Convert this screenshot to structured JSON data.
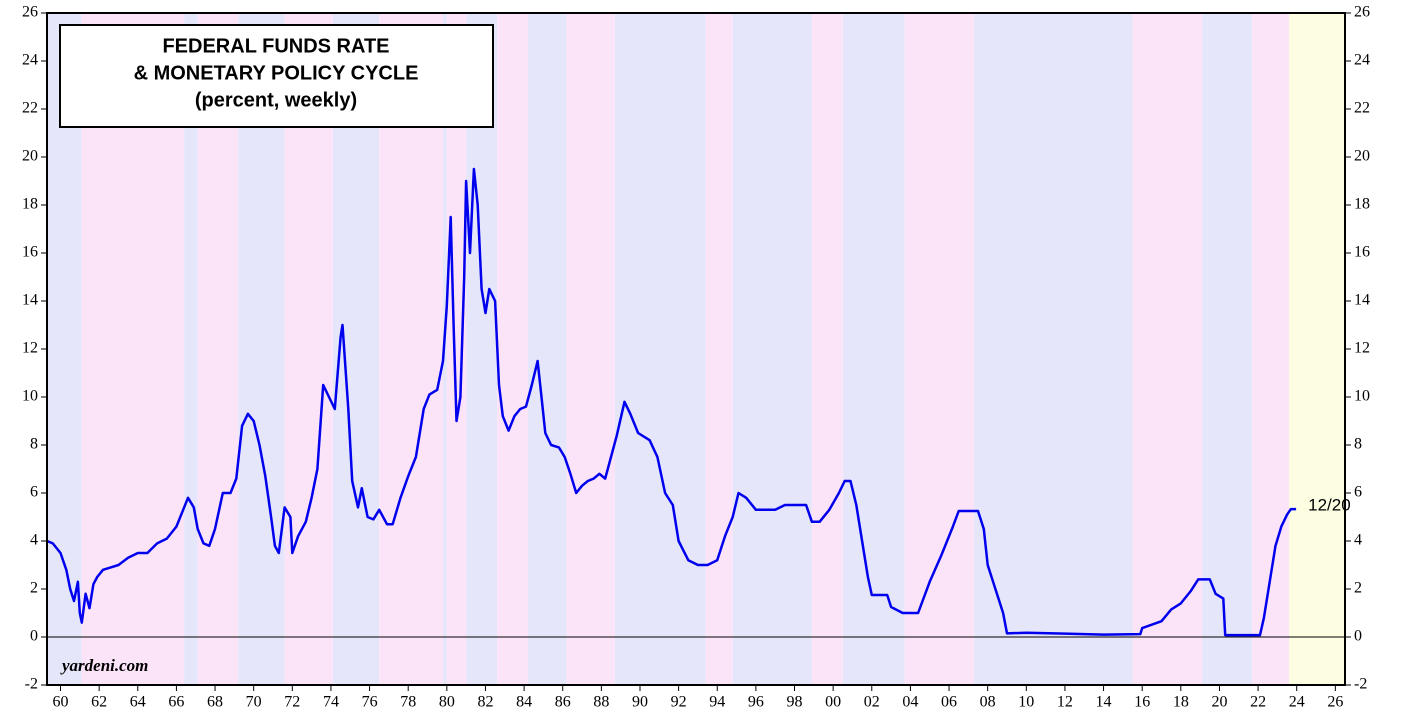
{
  "chart_data": {
    "type": "line",
    "title": [
      "FEDERAL FUNDS RATE",
      "& MONETARY POLICY CYCLE",
      "(percent, weekly)"
    ],
    "source": "yardeni.com",
    "end_label": "12/20",
    "color": "#0000ee",
    "xlim": [
      1959.3,
      2026.5
    ],
    "ylim": [
      -2,
      26
    ],
    "yticks": [
      -2,
      0,
      2,
      4,
      6,
      8,
      10,
      12,
      14,
      16,
      18,
      20,
      22,
      24,
      26
    ],
    "xticks": [
      {
        "value": 1960,
        "label": "60"
      },
      {
        "value": 1962,
        "label": "62"
      },
      {
        "value": 1964,
        "label": "64"
      },
      {
        "value": 1966,
        "label": "66"
      },
      {
        "value": 1968,
        "label": "68"
      },
      {
        "value": 1970,
        "label": "70"
      },
      {
        "value": 1972,
        "label": "72"
      },
      {
        "value": 1974,
        "label": "74"
      },
      {
        "value": 1976,
        "label": "76"
      },
      {
        "value": 1978,
        "label": "78"
      },
      {
        "value": 1980,
        "label": "80"
      },
      {
        "value": 1982,
        "label": "82"
      },
      {
        "value": 1984,
        "label": "84"
      },
      {
        "value": 1986,
        "label": "86"
      },
      {
        "value": 1988,
        "label": "88"
      },
      {
        "value": 1990,
        "label": "90"
      },
      {
        "value": 1992,
        "label": "92"
      },
      {
        "value": 1994,
        "label": "94"
      },
      {
        "value": 1996,
        "label": "96"
      },
      {
        "value": 1998,
        "label": "98"
      },
      {
        "value": 2000,
        "label": "00"
      },
      {
        "value": 2002,
        "label": "02"
      },
      {
        "value": 2004,
        "label": "04"
      },
      {
        "value": 2006,
        "label": "06"
      },
      {
        "value": 2008,
        "label": "08"
      },
      {
        "value": 2010,
        "label": "10"
      },
      {
        "value": 2012,
        "label": "12"
      },
      {
        "value": 2014,
        "label": "14"
      },
      {
        "value": 2016,
        "label": "16"
      },
      {
        "value": 2018,
        "label": "18"
      },
      {
        "value": 2020,
        "label": "20"
      },
      {
        "value": 2022,
        "label": "22"
      },
      {
        "value": 2024,
        "label": "24"
      },
      {
        "value": 2026,
        "label": "26"
      }
    ],
    "shaded_periods": [
      {
        "start": 1959.3,
        "end": 1961.1,
        "color": "#e6e6fa"
      },
      {
        "start": 1961.1,
        "end": 1966.4,
        "color": "#fce4f8"
      },
      {
        "start": 1966.4,
        "end": 1967.1,
        "color": "#e6e6fa"
      },
      {
        "start": 1967.1,
        "end": 1969.2,
        "color": "#fce4f8"
      },
      {
        "start": 1969.2,
        "end": 1971.6,
        "color": "#e6e6fa"
      },
      {
        "start": 1971.6,
        "end": 1974.1,
        "color": "#fce4f8"
      },
      {
        "start": 1974.1,
        "end": 1976.5,
        "color": "#e6e6fa"
      },
      {
        "start": 1976.5,
        "end": 1979.8,
        "color": "#fce4f8"
      },
      {
        "start": 1979.8,
        "end": 1980.0,
        "color": "#e6e6fa"
      },
      {
        "start": 1980.0,
        "end": 1981.0,
        "color": "#fce4f8"
      },
      {
        "start": 1981.0,
        "end": 1982.6,
        "color": "#e6e6fa"
      },
      {
        "start": 1982.6,
        "end": 1984.2,
        "color": "#fce4f8"
      },
      {
        "start": 1984.2,
        "end": 1986.2,
        "color": "#e6e6fa"
      },
      {
        "start": 1986.2,
        "end": 1988.7,
        "color": "#fce4f8"
      },
      {
        "start": 1988.7,
        "end": 1993.4,
        "color": "#e6e6fa"
      },
      {
        "start": 1993.4,
        "end": 1994.8,
        "color": "#fce4f8"
      },
      {
        "start": 1994.8,
        "end": 1998.9,
        "color": "#e6e6fa"
      },
      {
        "start": 1998.9,
        "end": 2000.5,
        "color": "#fce4f8"
      },
      {
        "start": 2000.5,
        "end": 2003.7,
        "color": "#e6e6fa"
      },
      {
        "start": 2003.7,
        "end": 2007.3,
        "color": "#fce4f8"
      },
      {
        "start": 2007.3,
        "end": 2015.5,
        "color": "#e6e6fa"
      },
      {
        "start": 2015.5,
        "end": 2019.1,
        "color": "#fce4f8"
      },
      {
        "start": 2019.1,
        "end": 2021.7,
        "color": "#e6e6fa"
      },
      {
        "start": 2021.7,
        "end": 2023.6,
        "color": "#fce4f8"
      },
      {
        "start": 2023.6,
        "end": 2026.5,
        "color": "#fdfde2"
      }
    ],
    "x": [
      1959.3,
      1959.6,
      1960.0,
      1960.3,
      1960.5,
      1960.7,
      1960.9,
      1961.0,
      1961.1,
      1961.3,
      1961.5,
      1961.7,
      1961.9,
      1962.2,
      1962.6,
      1963.0,
      1963.5,
      1964.0,
      1964.5,
      1965.0,
      1965.5,
      1966.0,
      1966.3,
      1966.6,
      1966.9,
      1967.1,
      1967.4,
      1967.7,
      1968.0,
      1968.4,
      1968.8,
      1969.1,
      1969.4,
      1969.7,
      1970.0,
      1970.3,
      1970.6,
      1970.9,
      1971.1,
      1971.3,
      1971.6,
      1971.9,
      1972.0,
      1972.3,
      1972.7,
      1973.0,
      1973.3,
      1973.6,
      1973.9,
      1974.2,
      1974.5,
      1974.6,
      1974.9,
      1975.1,
      1975.4,
      1975.6,
      1975.9,
      1976.2,
      1976.5,
      1976.9,
      1977.2,
      1977.6,
      1978.0,
      1978.4,
      1978.8,
      1979.1,
      1979.5,
      1979.8,
      1980.0,
      1980.2,
      1980.35,
      1980.5,
      1980.7,
      1980.9,
      1981.0,
      1981.2,
      1981.4,
      1981.6,
      1981.8,
      1982.0,
      1982.2,
      1982.5,
      1982.7,
      1982.9,
      1983.2,
      1983.5,
      1983.8,
      1984.1,
      1984.4,
      1984.7,
      1984.9,
      1985.1,
      1985.4,
      1985.8,
      1986.1,
      1986.4,
      1986.7,
      1987.0,
      1987.3,
      1987.6,
      1987.9,
      1988.2,
      1988.5,
      1988.8,
      1989.2,
      1989.5,
      1989.9,
      1990.5,
      1990.9,
      1991.3,
      1991.7,
      1992.0,
      1992.5,
      1993.0,
      1993.5,
      1994.0,
      1994.4,
      1994.8,
      1995.1,
      1995.5,
      1996.0,
      1996.5,
      1997.0,
      1997.5,
      1998.0,
      1998.6,
      1998.9,
      1999.3,
      1999.8,
      2000.3,
      2000.6,
      2000.9,
      2001.2,
      2001.5,
      2001.8,
      2002.0,
      2002.8,
      2003.0,
      2003.6,
      2004.4,
      2005.0,
      2005.6,
      2006.2,
      2006.5,
      2007.5,
      2007.8,
      2008.0,
      2008.4,
      2008.8,
      2009.0,
      2010.0,
      2012.0,
      2014.0,
      2015.9,
      2016.0,
      2017.0,
      2017.5,
      2018.0,
      2018.5,
      2018.9,
      2019.5,
      2019.8,
      2020.2,
      2020.3,
      2022.1,
      2022.3,
      2022.6,
      2022.9,
      2023.2,
      2023.5,
      2023.7,
      2023.97
    ],
    "values": [
      4.0,
      3.9,
      3.5,
      2.8,
      2.0,
      1.5,
      2.3,
      1.0,
      0.6,
      1.8,
      1.2,
      2.2,
      2.5,
      2.8,
      2.9,
      3.0,
      3.3,
      3.5,
      3.5,
      3.9,
      4.1,
      4.6,
      5.2,
      5.8,
      5.4,
      4.5,
      3.9,
      3.8,
      4.5,
      6.0,
      6.0,
      6.6,
      8.8,
      9.3,
      9.0,
      8.0,
      6.7,
      5.0,
      3.8,
      3.5,
      5.4,
      5.0,
      3.5,
      4.2,
      4.8,
      5.8,
      7.0,
      10.5,
      10.0,
      9.5,
      12.5,
      13.0,
      9.5,
      6.5,
      5.4,
      6.2,
      5.0,
      4.9,
      5.3,
      4.7,
      4.7,
      5.8,
      6.7,
      7.5,
      9.5,
      10.1,
      10.3,
      11.5,
      13.8,
      17.5,
      13.0,
      9.0,
      10.0,
      15.0,
      19.0,
      16.0,
      19.5,
      18.0,
      14.5,
      13.5,
      14.5,
      14.0,
      10.5,
      9.2,
      8.6,
      9.2,
      9.5,
      9.6,
      10.5,
      11.5,
      10.0,
      8.5,
      8.0,
      7.9,
      7.5,
      6.8,
      6.0,
      6.3,
      6.5,
      6.6,
      6.8,
      6.6,
      7.5,
      8.4,
      9.8,
      9.3,
      8.5,
      8.2,
      7.5,
      6.0,
      5.5,
      4.0,
      3.2,
      3.0,
      3.0,
      3.2,
      4.2,
      5.0,
      6.0,
      5.8,
      5.3,
      5.3,
      5.3,
      5.5,
      5.5,
      5.5,
      4.8,
      4.8,
      5.3,
      6.0,
      6.5,
      6.5,
      5.5,
      4.0,
      2.5,
      1.75,
      1.75,
      1.25,
      1.0,
      1.0,
      2.3,
      3.4,
      4.6,
      5.25,
      5.25,
      4.5,
      3.0,
      2.0,
      1.0,
      0.15,
      0.18,
      0.14,
      0.1,
      0.12,
      0.37,
      0.66,
      1.15,
      1.4,
      1.9,
      2.4,
      2.4,
      1.8,
      1.6,
      0.08,
      0.08,
      0.8,
      2.3,
      3.8,
      4.6,
      5.1,
      5.33,
      5.33
    ]
  }
}
